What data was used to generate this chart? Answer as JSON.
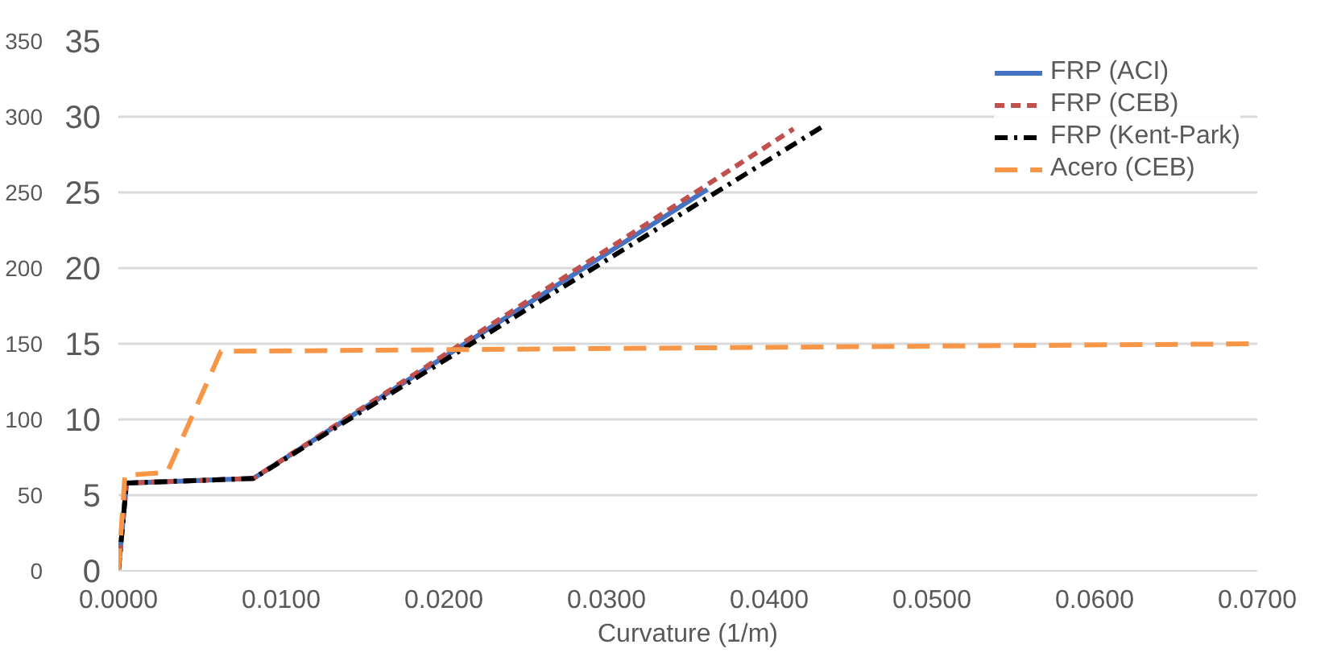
{
  "chart_data": {
    "type": "line",
    "xlabel": "Curvature (1/m)",
    "xlim": [
      0,
      0.07
    ],
    "xticks": [
      {
        "value": 0,
        "label": "0.0000"
      },
      {
        "value": 0.01,
        "label": "0.0100"
      },
      {
        "value": 0.02,
        "label": "0.0200"
      },
      {
        "value": 0.03,
        "label": "0.0300"
      },
      {
        "value": 0.04,
        "label": "0.0400"
      },
      {
        "value": 0.05,
        "label": "0.0500"
      },
      {
        "value": 0.06,
        "label": "0.0600"
      },
      {
        "value": 0.07,
        "label": "0.0700"
      }
    ],
    "ylim": [
      0,
      35
    ],
    "yticks": [
      0,
      5,
      10,
      15,
      20,
      25,
      30,
      35
    ],
    "y2lim": [
      0,
      350
    ],
    "y2ticks": [
      0,
      50,
      100,
      150,
      200,
      250,
      300,
      350
    ],
    "grid": "y",
    "legend": "top right",
    "series": [
      {
        "name": "FRP (ACI)",
        "color": "#4472c4",
        "line_style": "solid",
        "x": [
          0,
          0.0005,
          0.0083,
          0.0362
        ],
        "values": [
          0,
          5.8,
          6.1,
          25.2
        ]
      },
      {
        "name": "FRP (CEB)",
        "color": "#c0504d",
        "line_style": "dashed",
        "x": [
          0,
          0.0005,
          0.0083,
          0.0415
        ],
        "values": [
          0,
          5.8,
          6.1,
          29.2
        ]
      },
      {
        "name": "FRP (Kent-Park)",
        "color": "#000000",
        "line_style": "dashdot",
        "x": [
          0,
          0.0005,
          0.0083,
          0.0435
        ],
        "values": [
          0,
          5.8,
          6.1,
          29.5
        ]
      },
      {
        "name": "Acero (CEB)",
        "color": "#f79646",
        "line_style": "longdash",
        "x": [
          0,
          0.0004,
          0.003,
          0.0063,
          0.07
        ],
        "values": [
          0,
          6.3,
          6.5,
          14.5,
          15.0
        ]
      }
    ]
  }
}
